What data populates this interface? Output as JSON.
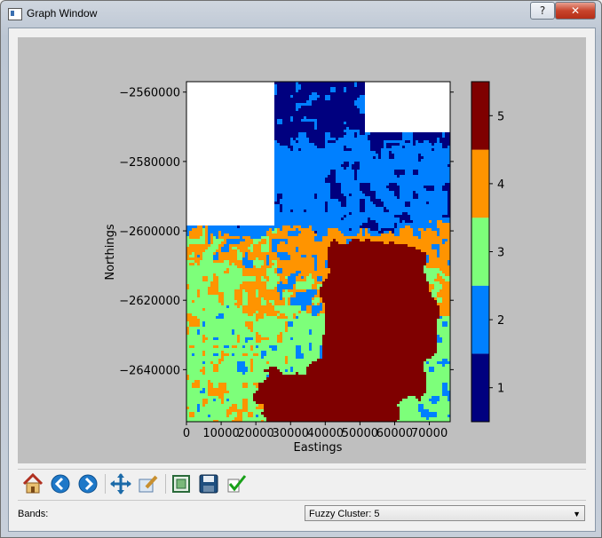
{
  "window": {
    "title": "Graph Window",
    "help_label": "?",
    "close_label": "✕"
  },
  "chart_data": {
    "type": "heatmap",
    "xlabel": "Eastings",
    "ylabel": "Northings",
    "x_ticks": [
      "0",
      "10000",
      "20000",
      "30000",
      "40000",
      "50000",
      "60000",
      "70000"
    ],
    "y_ticks": [
      "−2560000",
      "−2580000",
      "−2600000",
      "−2620000",
      "−2640000"
    ],
    "xlim": [
      0,
      76000
    ],
    "ylim": [
      -2655000,
      -2557000
    ],
    "colorbar": {
      "ticks": [
        "1",
        "2",
        "3",
        "4",
        "5"
      ],
      "colors": [
        "#00007f",
        "#0080ff",
        "#7dff7a",
        "#ff9400",
        "#7f0000"
      ]
    },
    "categories": [
      1,
      2,
      3,
      4,
      5
    ]
  },
  "toolbar": {
    "tools": [
      "home-icon",
      "back-icon",
      "forward-icon",
      "pan-icon",
      "zoom-icon",
      "configure-subplots-icon",
      "save-icon",
      "check-icon"
    ]
  },
  "bands": {
    "label": "Bands:",
    "selected": "Fuzzy Cluster: 5"
  }
}
